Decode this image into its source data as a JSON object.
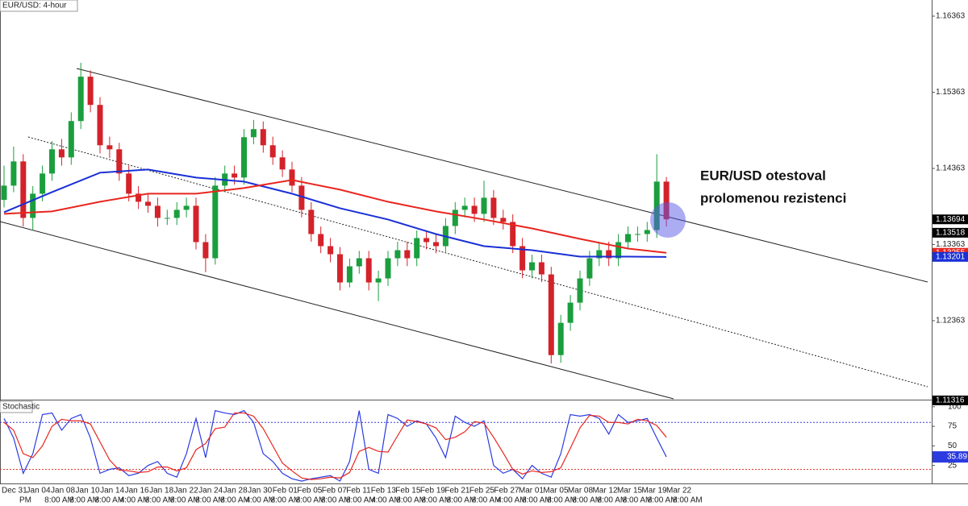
{
  "chart_data": {
    "type": "candlestick",
    "title": "EUR/USD: 4-hour",
    "annotation": [
      "EUR/USD otestoval",
      "prolomenou rezistenci"
    ],
    "x_labels": [
      "Dec 31",
      "Jan 04",
      "Jan 08",
      "Jan 10",
      "Jan 14",
      "Jan 16",
      "Jan 18",
      "Jan 22",
      "Jan 24",
      "Jan 28",
      "Jan 30",
      "Feb 01",
      "Feb 05",
      "Feb 07",
      "Feb 11",
      "Feb 13",
      "Feb 15",
      "Feb 19",
      "Feb 21",
      "Feb 25",
      "Feb 27",
      "Mar 01",
      "Mar 05",
      "Mar 08",
      "Mar 12",
      "Mar 15",
      "Mar 19",
      "Mar 22"
    ],
    "time_labels": [
      "PM",
      "8:00 AM",
      "8:00 AM",
      "8:00 AM",
      "4:00 AM",
      "8:00 AM",
      "8:00 AM",
      "8:00 AM",
      "8:00 AM",
      "4:00 AM",
      "8:00 AM",
      "8:00 AM",
      "8:00 AM",
      "8:00 AM",
      "4:00 AM",
      "8:00 AM",
      "8:00 AM",
      "8:00 AM",
      "8:00 AM",
      "4:00 AM",
      "8:00 AM",
      "8:00 AM",
      "8:00 AM",
      "8:00 AM",
      "8:00 AM",
      "8:00 AM",
      "8:00 AM"
    ],
    "ylim": [
      1.11326,
      1.16575
    ],
    "yticks": [
      1.16363,
      1.15363,
      1.14363,
      1.13363,
      1.12363
    ],
    "price_labels": [
      {
        "value": 1.13694,
        "color": "#000000"
      },
      {
        "value": 1.13518,
        "color": "#000000"
      },
      {
        "value": 1.13255,
        "color": "#e8261f"
      },
      {
        "value": 1.13201,
        "color": "#1a2fd6"
      },
      {
        "value": 1.11316,
        "color": "#000000"
      }
    ],
    "candles": {
      "up_color": "#1b9e3e",
      "down_color": "#d3222a",
      "open": [
        1.1395,
        1.14137,
        1.14455,
        1.13713,
        1.14031,
        1.14296,
        1.14614,
        1.14508,
        1.14985,
        1.15568,
        1.15197,
        1.14667,
        1.14614,
        1.14296,
        1.14031,
        1.13925,
        1.13872,
        1.13713,
        1.13713,
        1.13819,
        1.13872,
        1.13395,
        1.13183,
        1.14137,
        1.14296,
        1.14243,
        1.14773,
        1.14879,
        1.14667,
        1.14508,
        1.14349,
        1.14137,
        1.13819,
        1.13501,
        1.13342,
        1.13236,
        1.12865,
        1.13077,
        1.13183,
        1.12865,
        1.12918,
        1.13183,
        1.13289,
        1.13183,
        1.13448,
        1.13395,
        1.13342,
        1.13607,
        1.13819,
        1.13872,
        1.13766,
        1.13978,
        1.13713,
        1.1366,
        1.13342,
        1.13024,
        1.1313,
        1.12971,
        1.11911,
        1.12335,
        1.126,
        1.12918,
        1.13183,
        1.13289,
        1.13183,
        1.13395,
        1.13501,
        1.13501,
        1.13554,
        1.1419
      ],
      "high": [
        1.144,
        1.1465,
        1.1455,
        1.1413,
        1.144,
        1.1472,
        1.1475,
        1.151,
        1.1575,
        1.1565,
        1.153,
        1.1478,
        1.147,
        1.144,
        1.1413,
        1.1403,
        1.1398,
        1.1382,
        1.1392,
        1.1398,
        1.1398,
        1.135,
        1.1425,
        1.144,
        1.144,
        1.1488,
        1.15,
        1.1498,
        1.1478,
        1.146,
        1.1445,
        1.1425,
        1.1392,
        1.136,
        1.1345,
        1.1333,
        1.1318,
        1.1328,
        1.1328,
        1.1302,
        1.1328,
        1.134,
        1.134,
        1.1355,
        1.1355,
        1.135,
        1.1371,
        1.1392,
        1.1398,
        1.1398,
        1.142,
        1.1408,
        1.1382,
        1.1376,
        1.1345,
        1.1323,
        1.1323,
        1.1307,
        1.1244,
        1.127,
        1.1302,
        1.1328,
        1.134,
        1.134,
        1.135,
        1.136,
        1.136,
        1.1366,
        1.1455,
        1.1425
      ],
      "low": [
        1.1385,
        1.1405,
        1.136,
        1.1355,
        1.1393,
        1.142,
        1.144,
        1.1441,
        1.1488,
        1.151,
        1.1456,
        1.145,
        1.142,
        1.1393,
        1.1383,
        1.1378,
        1.136,
        1.1362,
        1.1362,
        1.1372,
        1.133,
        1.13,
        1.131,
        1.1405,
        1.1415,
        1.1415,
        1.1468,
        1.1457,
        1.1441,
        1.1425,
        1.1405,
        1.1372,
        1.134,
        1.1325,
        1.1313,
        1.1276,
        1.128,
        1.1298,
        1.1276,
        1.1262,
        1.1282,
        1.1308,
        1.1308,
        1.1308,
        1.133,
        1.1325,
        1.1325,
        1.135,
        1.1372,
        1.1366,
        1.1366,
        1.1362,
        1.1356,
        1.1325,
        1.1292,
        1.1292,
        1.1287,
        1.118,
        1.1181,
        1.1223,
        1.125,
        1.1282,
        1.1308,
        1.1308,
        1.1308,
        1.133,
        1.134,
        1.134,
        1.1345,
        1.136
      ],
      "close": [
        1.14137,
        1.14455,
        1.13713,
        1.14031,
        1.14296,
        1.14614,
        1.14508,
        1.14985,
        1.15568,
        1.15197,
        1.14667,
        1.14614,
        1.14296,
        1.14031,
        1.13925,
        1.13872,
        1.13713,
        1.13713,
        1.13819,
        1.13872,
        1.13395,
        1.13183,
        1.14137,
        1.14296,
        1.14243,
        1.14773,
        1.14879,
        1.14667,
        1.14508,
        1.14349,
        1.14137,
        1.13819,
        1.13501,
        1.13342,
        1.13236,
        1.12865,
        1.13077,
        1.13183,
        1.12865,
        1.12918,
        1.13183,
        1.13289,
        1.13183,
        1.13448,
        1.13395,
        1.13342,
        1.13607,
        1.13819,
        1.13872,
        1.13766,
        1.13978,
        1.13713,
        1.1366,
        1.13342,
        1.13024,
        1.1313,
        1.12971,
        1.11911,
        1.12335,
        1.126,
        1.12918,
        1.13183,
        1.13289,
        1.13183,
        1.13395,
        1.13501,
        1.13501,
        1.13554,
        1.1419,
        1.13694
      ]
    },
    "moving_averages": {
      "x": [
        0,
        5,
        10,
        15,
        20,
        25,
        30,
        35,
        40,
        45,
        50,
        55,
        60,
        65,
        69
      ],
      "series": [
        {
          "color": "#1a2fd6",
          "values": [
            1.13787,
            1.14052,
            1.14307,
            1.14349,
            1.14243,
            1.1419,
            1.14031,
            1.1384,
            1.13692,
            1.13501,
            1.13342,
            1.13289,
            1.13204,
            1.13204,
            1.13201
          ]
        },
        {
          "color": "#e8261f",
          "values": [
            1.13766,
            1.13798,
            1.13925,
            1.14031,
            1.14031,
            1.14105,
            1.14211,
            1.14084,
            1.13925,
            1.13798,
            1.13692,
            1.13575,
            1.13437,
            1.1331,
            1.13255
          ]
        }
      ]
    },
    "stochastic": {
      "title": "Stochastic",
      "ylim": [
        2,
        107
      ],
      "yticks": [
        100,
        75,
        50,
        25
      ],
      "levels": [
        {
          "value": 80,
          "color": "#3b3bd1"
        },
        {
          "value": 20,
          "color": "#e03a2f"
        }
      ],
      "value_label": 35.89,
      "series": [
        {
          "color": "#2b3be0",
          "values": [
            85,
            60,
            15,
            40,
            90,
            92,
            70,
            85,
            90,
            60,
            15,
            20,
            22,
            12,
            15,
            25,
            30,
            15,
            10,
            40,
            85,
            35,
            95,
            92,
            90,
            95,
            80,
            40,
            30,
            15,
            8,
            5,
            8,
            10,
            12,
            5,
            30,
            95,
            20,
            15,
            90,
            85,
            75,
            82,
            78,
            60,
            35,
            88,
            80,
            75,
            82,
            25,
            15,
            20,
            8,
            25,
            15,
            10,
            40,
            90,
            88,
            90,
            85,
            65,
            90,
            80,
            82,
            85,
            60,
            35.89
          ]
        },
        {
          "color": "#e8261f",
          "values": [
            80,
            70,
            40,
            35,
            50,
            75,
            84,
            82,
            82,
            78,
            55,
            32,
            19,
            18,
            16,
            17,
            23,
            23,
            18,
            22,
            45,
            53,
            72,
            74,
            92,
            92,
            88,
            72,
            50,
            28,
            18,
            9,
            7,
            8,
            10,
            9,
            16,
            43,
            48,
            43,
            42,
            63,
            83,
            81,
            78,
            73,
            58,
            61,
            68,
            81,
            79,
            61,
            41,
            20,
            14,
            18,
            16,
            17,
            22,
            47,
            73,
            89,
            88,
            80,
            80,
            78,
            84,
            82,
            76,
            61
          ]
        }
      ]
    }
  }
}
